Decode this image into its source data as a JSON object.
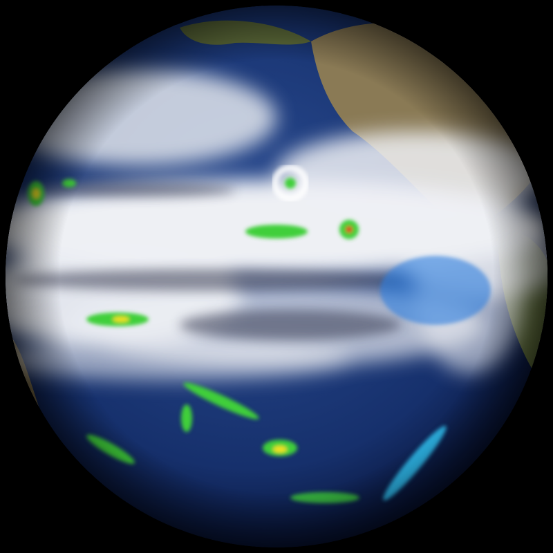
{
  "scene": {
    "subject": "globe",
    "colors": {
      "background": "#000000",
      "ocean_deep": "#0a1a4a",
      "ocean": "#1d3a7a",
      "cloud": "#f2f3f6",
      "cloud_shadow": "#3a3d52",
      "land": "#8a7a55",
      "land_green": "#5d6b3a",
      "rain_light": "#2fb6e8",
      "rain_medium": "#3fcf3a",
      "rain_heavy": "#f0e020",
      "rain_intense": "#e03020"
    }
  }
}
